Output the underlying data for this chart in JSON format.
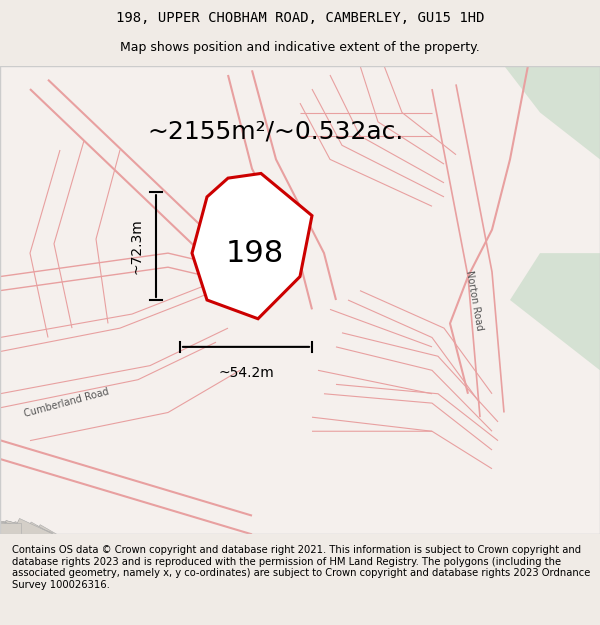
{
  "title_line1": "198, UPPER CHOBHAM ROAD, CAMBERLEY, GU15 1HD",
  "title_line2": "Map shows position and indicative extent of the property.",
  "area_text": "~2155m²/~0.532ac.",
  "property_label": "198",
  "dim_width": "~54.2m",
  "dim_height": "~72.3m",
  "footer_text": "Contains OS data © Crown copyright and database right 2021. This information is subject to Crown copyright and database rights 2023 and is reproduced with the permission of HM Land Registry. The polygons (including the associated geometry, namely x, y co-ordinates) are subject to Crown copyright and database rights 2023 Ordnance Survey 100026316.",
  "bg_color": "#f5f0ed",
  "map_bg": "#ffffff",
  "polygon_color": "#cc0000",
  "polygon_fill": "#ffffff",
  "road_color": "#e8a0a0",
  "building_color": "#d4cfc8",
  "green_area": "#c8dfc8",
  "title_fontsize": 10,
  "subtitle_fontsize": 9,
  "area_fontsize": 18,
  "label_fontsize": 22,
  "dim_fontsize": 10,
  "footer_fontsize": 7.2
}
